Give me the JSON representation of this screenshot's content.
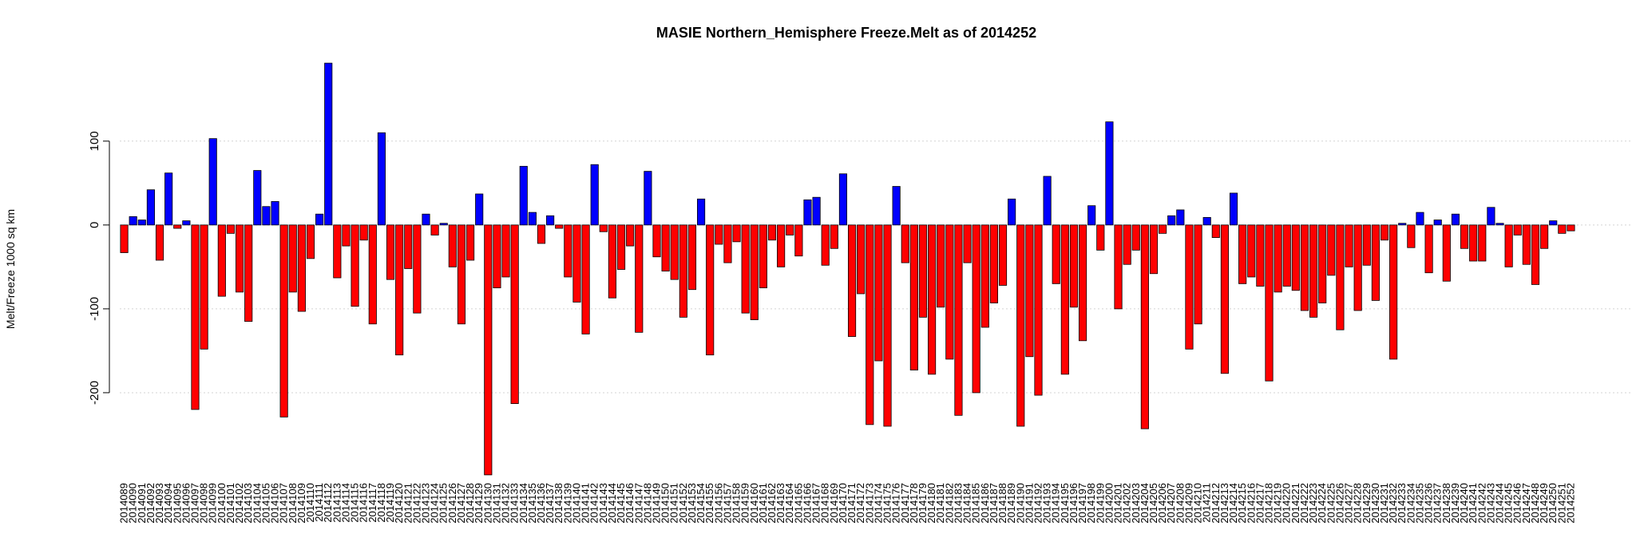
{
  "chart_data": {
    "type": "bar",
    "title": "MASIE Northern_Hemisphere Freeze.Melt as of 2014252",
    "y_label": "Melt/Freeze 1000 sq km",
    "categories": [
      "2014089",
      "2014090",
      "2014091",
      "2014092",
      "2014093",
      "2014094",
      "2014095",
      "2014096",
      "2014097",
      "2014098",
      "2014099",
      "2014100",
      "2014101",
      "2014102",
      "2014103",
      "2014104",
      "2014105",
      "2014106",
      "2014107",
      "2014108",
      "2014109",
      "2014110",
      "2014111",
      "2014112",
      "2014113",
      "2014114",
      "2014115",
      "2014116",
      "2014117",
      "2014118",
      "2014119",
      "2014120",
      "2014121",
      "2014122",
      "2014123",
      "2014124",
      "2014125",
      "2014126",
      "2014127",
      "2014128",
      "2014129",
      "2014130",
      "2014131",
      "2014132",
      "2014133",
      "2014134",
      "2014135",
      "2014136",
      "2014137",
      "2014138",
      "2014139",
      "2014140",
      "2014141",
      "2014142",
      "2014143",
      "2014144",
      "2014145",
      "2014146",
      "2014147",
      "2014148",
      "2014149",
      "2014150",
      "2014151",
      "2014152",
      "2014153",
      "2014154",
      "2014155",
      "2014156",
      "2014157",
      "2014158",
      "2014159",
      "2014160",
      "2014161",
      "2014162",
      "2014163",
      "2014164",
      "2014165",
      "2014166",
      "2014167",
      "2014168",
      "2014169",
      "2014170",
      "2014171",
      "2014172",
      "2014173",
      "2014174",
      "2014175",
      "2014176",
      "2014177",
      "2014178",
      "2014179",
      "2014180",
      "2014181",
      "2014182",
      "2014183",
      "2014184",
      "2014185",
      "2014186",
      "2014187",
      "2014188",
      "2014189",
      "2014190",
      "2014191",
      "2014192",
      "2014193",
      "2014194",
      "2014195",
      "2014196",
      "2014197",
      "2014198",
      "2014199",
      "2014200",
      "2014201",
      "2014202",
      "2014203",
      "2014204",
      "2014205",
      "2014206",
      "2014207",
      "2014208",
      "2014209",
      "2014210",
      "2014211",
      "2014212",
      "2014213",
      "2014214",
      "2014215",
      "2014216",
      "2014217",
      "2014218",
      "2014219",
      "2014220",
      "2014221",
      "2014222",
      "2014223",
      "2014224",
      "2014225",
      "2014226",
      "2014227",
      "2014228",
      "2014229",
      "2014230",
      "2014231",
      "2014232",
      "2014233",
      "2014234",
      "2014235",
      "2014236",
      "2014237",
      "2014238",
      "2014239",
      "2014240",
      "2014241",
      "2014242",
      "2014243",
      "2014244",
      "2014245",
      "2014246",
      "2014247",
      "2014248",
      "2014249",
      "2014250",
      "2014251",
      "2014252"
    ],
    "values": [
      -33,
      10,
      6,
      42,
      -42,
      62,
      -4,
      5,
      -220,
      -148,
      103,
      -85,
      -10,
      -80,
      -115,
      65,
      22,
      28,
      -229,
      -80,
      -103,
      -40,
      13,
      193,
      -63,
      -25,
      -97,
      -18,
      -118,
      110,
      -65,
      -155,
      -52,
      -105,
      13,
      -12,
      2,
      -50,
      -118,
      -42,
      37,
      -298,
      -75,
      -62,
      -213,
      70,
      15,
      -22,
      11,
      -4,
      -62,
      -92,
      -130,
      72,
      -8,
      -87,
      -53,
      -25,
      -128,
      64,
      -38,
      -55,
      -65,
      -110,
      -77,
      31,
      -155,
      -23,
      -45,
      -20,
      -105,
      -113,
      -75,
      -18,
      -50,
      -12,
      -37,
      30,
      33,
      -48,
      -28,
      61,
      -133,
      -82,
      -238,
      -162,
      -240,
      46,
      -45,
      -173,
      -110,
      -178,
      -98,
      -160,
      -227,
      -45,
      -200,
      -122,
      -93,
      -72,
      31,
      -240,
      -157,
      -203,
      58,
      -70,
      -178,
      -98,
      -138,
      23,
      -30,
      123,
      -100,
      -47,
      -30,
      -243,
      -58,
      -10,
      11,
      18,
      -148,
      -118,
      9,
      -15,
      -177,
      38,
      -70,
      -62,
      -73,
      -186,
      -80,
      -73,
      -78,
      -102,
      -110,
      -93,
      -60,
      -125,
      -50,
      -102,
      -48,
      -90,
      -18,
      -160,
      2,
      -27,
      15,
      -57,
      6,
      -67,
      13,
      -28,
      -43,
      -43,
      21,
      2,
      -50,
      -12,
      -47,
      -71,
      -28,
      5,
      -10,
      -7
    ],
    "positive_color": "#0000ff",
    "negative_color": "#ff0000",
    "ylim": [
      -300,
      195
    ],
    "yticks": [
      -200,
      -100,
      0,
      100
    ],
    "grid": true
  }
}
